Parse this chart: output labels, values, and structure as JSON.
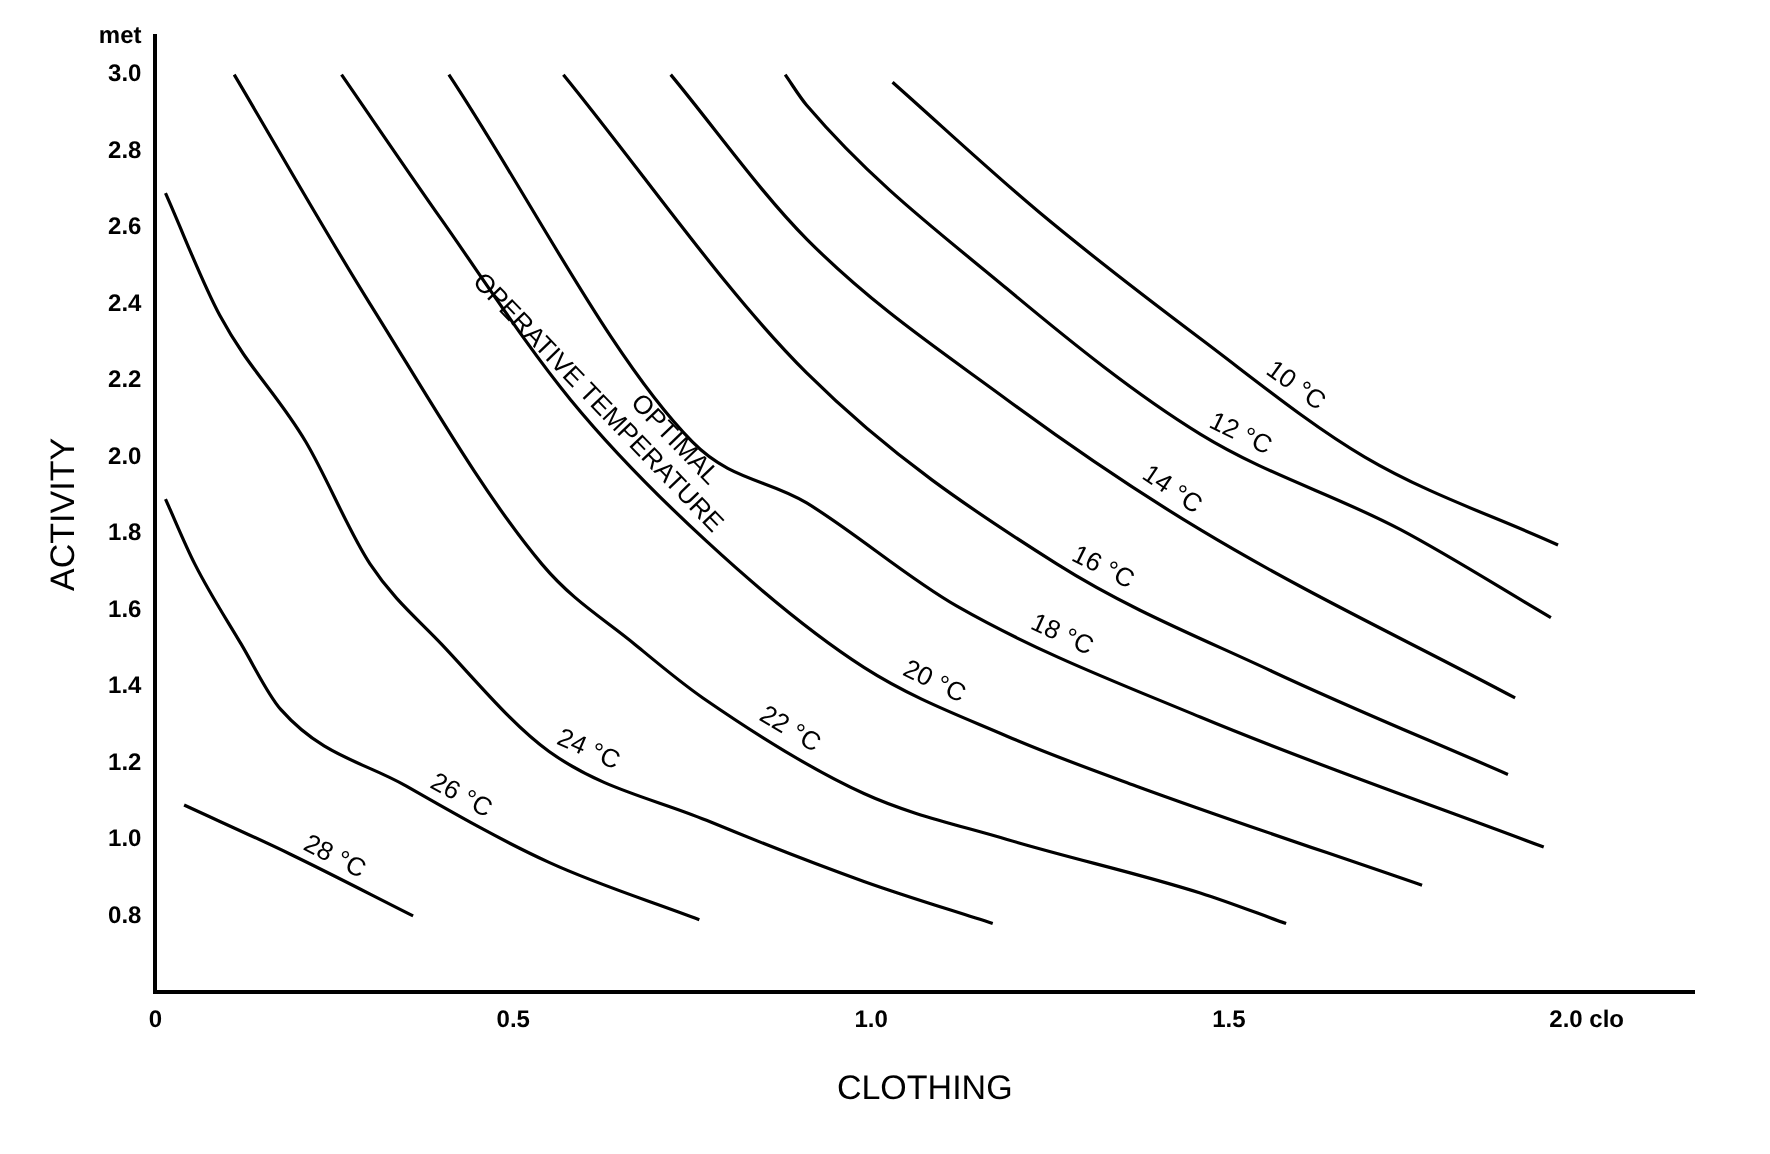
{
  "chart_data": {
    "type": "line",
    "xlabel": "CLOTHING",
    "ylabel": "ACTIVITY",
    "xlim": [
      0,
      2.15
    ],
    "ylim": [
      0.6,
      3.1
    ],
    "xticks": [
      0,
      0.5,
      {
        "value": 1,
        "label": "1.0"
      },
      1.5,
      {
        "value": 2,
        "label": "2.0 clo"
      }
    ],
    "yticks": [
      0.8,
      {
        "value": 1,
        "label": "1.0"
      },
      1.2,
      1.4,
      1.6,
      1.8,
      {
        "value": 2,
        "label": "2.0"
      },
      2.2,
      2.4,
      2.6,
      2.8,
      {
        "value": 3,
        "label": "3.0"
      },
      {
        "value": 3.1,
        "label": "met"
      }
    ],
    "grid": false,
    "legend": false,
    "marker": "none",
    "line_style": "solid",
    "series": [
      {
        "name": "10 °C",
        "color": "#000000",
        "x": [
          1.03,
          1.235,
          1.46,
          1.69,
          1.96
        ],
        "values": [
          2.98,
          2.64,
          2.31,
          2.0,
          1.77
        ]
      },
      {
        "name": "12 °C",
        "color": "#000000",
        "x": [
          0.88,
          0.91,
          1.19,
          1.46,
          1.74,
          1.95
        ],
        "values": [
          3.0,
          2.92,
          2.44,
          2.06,
          1.81,
          1.58
        ]
      },
      {
        "name": "14 °C",
        "color": "#000000",
        "x": [
          0.72,
          0.91,
          1.19,
          1.46,
          1.9
        ],
        "values": [
          3.0,
          2.57,
          2.15,
          1.81,
          1.37
        ]
      },
      {
        "name": "16 °C",
        "color": "#000000",
        "x": [
          0.57,
          0.91,
          1.26,
          1.56,
          1.89
        ],
        "values": [
          3.0,
          2.22,
          1.72,
          1.44,
          1.17
        ]
      },
      {
        "name": "18 °C",
        "color": "#000000",
        "x": [
          0.41,
          0.75,
          0.91,
          1.12,
          1.46,
          1.94
        ],
        "values": [
          3.0,
          2.04,
          1.88,
          1.61,
          1.32,
          0.98
        ]
      },
      {
        "name": "20 °C",
        "color": "#000000",
        "x": [
          0.26,
          0.4,
          0.58,
          0.77,
          0.99,
          1.19,
          1.37,
          1.77
        ],
        "values": [
          3.0,
          2.62,
          2.15,
          1.78,
          1.45,
          1.27,
          1.14,
          0.88
        ]
      },
      {
        "name": "22 °C",
        "color": "#000000",
        "x": [
          0.11,
          0.3,
          0.54,
          0.67,
          0.765,
          0.99,
          1.19,
          1.46,
          1.58
        ],
        "values": [
          3.0,
          2.4,
          1.72,
          1.51,
          1.37,
          1.12,
          1.0,
          0.86,
          0.78
        ]
      },
      {
        "name": "24 °C",
        "color": "#000000",
        "x": [
          0.014,
          0.09,
          0.21,
          0.3,
          0.4,
          0.55,
          0.77,
          0.99,
          1.17
        ],
        "values": [
          2.69,
          2.37,
          2.04,
          1.72,
          1.51,
          1.23,
          1.05,
          0.89,
          0.78
        ]
      },
      {
        "name": "26 °C",
        "color": "#000000",
        "x": [
          0.014,
          0.055,
          0.12,
          0.175,
          0.35,
          0.55,
          0.76
        ],
        "values": [
          1.89,
          1.72,
          1.51,
          1.34,
          1.14,
          0.94,
          0.79
        ]
      },
      {
        "name": "28 °C",
        "color": "#000000",
        "x": [
          0.04,
          0.19,
          0.36
        ],
        "values": [
          1.09,
          0.96,
          0.8
        ]
      }
    ],
    "annotations": [
      "OPTIMAL",
      "OPERATIVE TEMPERATURE"
    ]
  }
}
